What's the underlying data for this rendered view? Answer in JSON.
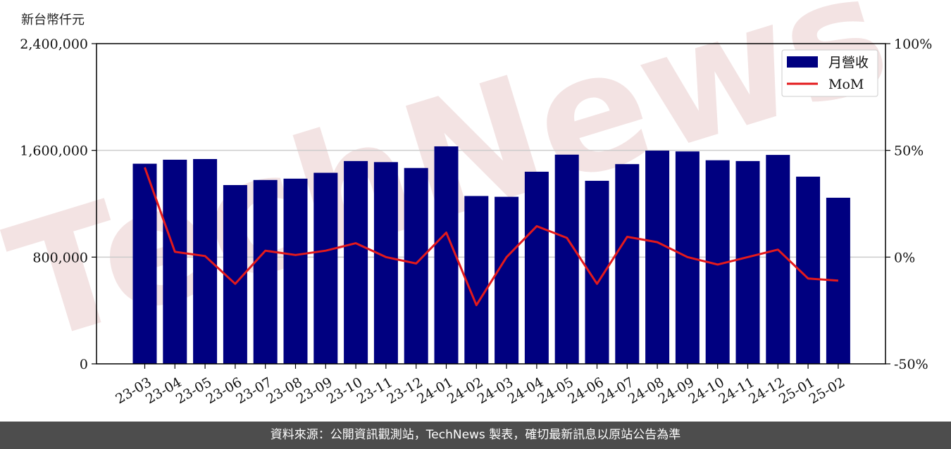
{
  "unit_label": "新台幣仟元",
  "footer": "資料來源：公開資訊觀測站，TechNews 製表，確切最新訊息以原站公告為準",
  "watermark": "TechNews",
  "colors": {
    "bar": "#000080",
    "line": "#e31a1c",
    "grid": "#cccccc",
    "footer_bg": "#4d4d4d"
  },
  "chart_data": {
    "type": "bar",
    "categories": [
      "23-03",
      "23-04",
      "23-05",
      "23-06",
      "23-07",
      "23-08",
      "23-09",
      "23-10",
      "23-11",
      "23-12",
      "24-01",
      "24-02",
      "24-03",
      "24-04",
      "24-05",
      "24-06",
      "24-07",
      "24-08",
      "24-09",
      "24-10",
      "24-11",
      "24-12",
      "25-01",
      "25-02"
    ],
    "series": [
      {
        "name": "月營收",
        "type": "bar",
        "axis": "left",
        "values": [
          1500000,
          1530000,
          1535000,
          1340000,
          1378000,
          1388000,
          1432000,
          1520000,
          1512000,
          1468000,
          1630000,
          1258000,
          1252000,
          1440000,
          1568000,
          1372000,
          1497000,
          1598000,
          1592000,
          1526000,
          1520000,
          1566000,
          1403000,
          1245000
        ]
      },
      {
        "name": "MoM",
        "type": "line",
        "axis": "right",
        "values": [
          42,
          2.5,
          0.5,
          -12.5,
          3,
          1,
          3,
          6.5,
          0,
          -3,
          11.5,
          -22.5,
          0,
          14.5,
          9,
          -12.5,
          9.5,
          7,
          0,
          -3.5,
          0,
          3.5,
          -10,
          -11
        ]
      }
    ],
    "y_left": {
      "lim": [
        0,
        2400000
      ],
      "ticks": [
        "0",
        "800,000",
        "1,600,000",
        "2,400,000"
      ]
    },
    "y_right": {
      "lim": [
        -50,
        100
      ],
      "ticks": [
        "-50%",
        "0%",
        "50%",
        "100%"
      ]
    },
    "grid": "horizontal",
    "legend": "top-right"
  }
}
